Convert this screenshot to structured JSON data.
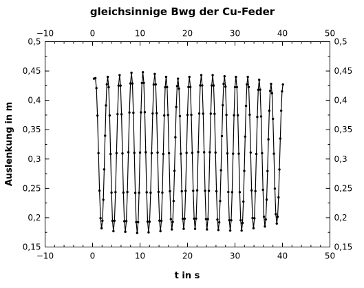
{
  "chart_data": {
    "type": "line",
    "title": "gleichsinnige Bwg der Cu-Feder",
    "xlabel": "t in s",
    "ylabel": "Auslenkung in m",
    "xlim": [
      -10,
      50
    ],
    "ylim": [
      0.15,
      0.5
    ],
    "x_ticks": [
      -10,
      0,
      10,
      20,
      30,
      40,
      50
    ],
    "x_tick_labels": [
      "−10",
      "0",
      "10",
      "20",
      "30",
      "40",
      "50"
    ],
    "y_ticks": [
      0.15,
      0.2,
      0.25,
      0.3,
      0.35,
      0.4,
      0.45,
      0.5
    ],
    "y_tick_labels": [
      "0,15",
      "0,2",
      "0,25",
      "0,3",
      "0,35",
      "0,4",
      "0,45",
      "0,5"
    ],
    "mirror_axes": true,
    "grid": false,
    "series": [
      {
        "marker": "dot",
        "color": "#000000",
        "sample_interval_s": 0.2,
        "peaks": [
          [
            0.6,
            0.438
          ],
          [
            3.2,
            0.44
          ],
          [
            5.7,
            0.443
          ],
          [
            8.2,
            0.447
          ],
          [
            10.6,
            0.448
          ],
          [
            13.1,
            0.445
          ],
          [
            15.5,
            0.44
          ],
          [
            18.0,
            0.437
          ],
          [
            20.4,
            0.44
          ],
          [
            22.9,
            0.443
          ],
          [
            25.3,
            0.443
          ],
          [
            27.8,
            0.441
          ],
          [
            30.2,
            0.44
          ],
          [
            32.7,
            0.44
          ],
          [
            35.1,
            0.435
          ],
          [
            37.6,
            0.428
          ],
          [
            40.1,
            0.427
          ]
        ],
        "troughs": [
          [
            1.9,
            0.182
          ],
          [
            4.4,
            0.177
          ],
          [
            6.9,
            0.176
          ],
          [
            9.4,
            0.174
          ],
          [
            11.8,
            0.175
          ],
          [
            14.3,
            0.177
          ],
          [
            16.7,
            0.18
          ],
          [
            19.2,
            0.181
          ],
          [
            21.6,
            0.181
          ],
          [
            24.1,
            0.18
          ],
          [
            26.5,
            0.179
          ],
          [
            29.0,
            0.178
          ],
          [
            31.4,
            0.178
          ],
          [
            33.9,
            0.182
          ],
          [
            36.3,
            0.185
          ],
          [
            38.8,
            0.19
          ]
        ]
      }
    ]
  }
}
